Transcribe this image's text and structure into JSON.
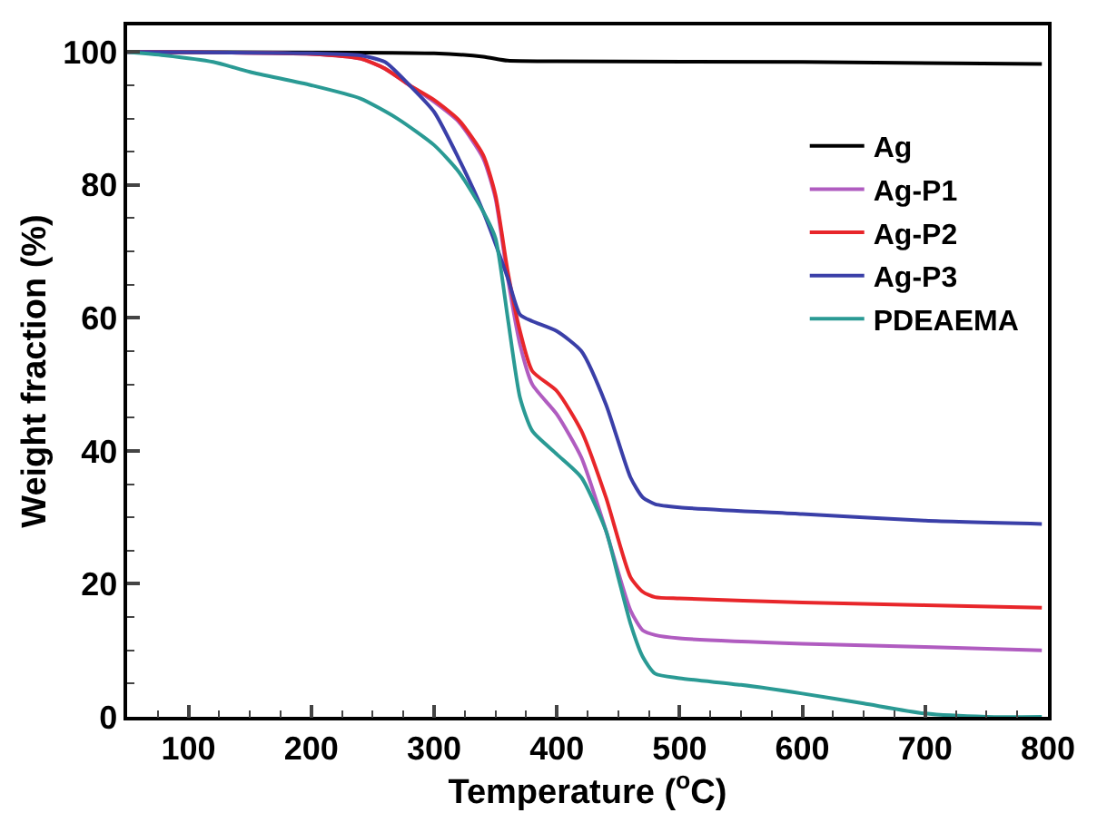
{
  "chart_data": {
    "type": "line",
    "xlabel": "Temperature ($^{o}$C)",
    "ylabel": "Weight fraction (%)",
    "xlim": [
      50,
      800
    ],
    "ylim": [
      0,
      104
    ],
    "xticks": [
      100,
      200,
      300,
      400,
      500,
      600,
      700,
      800
    ],
    "yticks": [
      0,
      20,
      40,
      60,
      80,
      100
    ],
    "legend": "top right",
    "marker": "none",
    "line_style": "solid",
    "series": [
      {
        "name": "Ag",
        "color": "#000000",
        "x": [
          50,
          300,
          340,
          360,
          400,
          600,
          795
        ],
        "values": [
          100,
          99.8,
          99.3,
          98.7,
          98.6,
          98.5,
          98.2
        ]
      },
      {
        "name": "Ag-P1",
        "color": "#b05cc0",
        "x": [
          50,
          200,
          240,
          260,
          280,
          300,
          320,
          340,
          350,
          360,
          370,
          380,
          400,
          420,
          440,
          460,
          470,
          480,
          500,
          600,
          700,
          795
        ],
        "values": [
          100,
          99.7,
          99,
          97.5,
          95,
          92.5,
          89.5,
          84,
          78,
          66,
          56,
          50,
          45.5,
          39,
          28,
          16,
          13,
          12.3,
          11.8,
          11,
          10.5,
          10
        ]
      },
      {
        "name": "Ag-P2",
        "color": "#e8262a",
        "x": [
          50,
          200,
          240,
          260,
          280,
          300,
          320,
          340,
          350,
          360,
          370,
          380,
          400,
          420,
          440,
          460,
          470,
          480,
          500,
          600,
          700,
          795
        ],
        "values": [
          100,
          99.7,
          99,
          97.5,
          95,
          92.8,
          89.8,
          84.5,
          78.5,
          67,
          58,
          52,
          49,
          43,
          33,
          21,
          18.8,
          18,
          17.8,
          17.2,
          16.8,
          16.4
        ]
      },
      {
        "name": "Ag-P3",
        "color": "#3a3fa8",
        "x": [
          50,
          200,
          240,
          260,
          280,
          300,
          320,
          340,
          360,
          370,
          380,
          400,
          420,
          440,
          460,
          470,
          480,
          500,
          600,
          700,
          795
        ],
        "values": [
          100,
          99.8,
          99.5,
          98.5,
          95,
          91,
          84,
          76,
          66,
          60.5,
          59.5,
          58,
          55,
          47,
          36,
          33,
          32,
          31.5,
          30.5,
          29.5,
          29
        ]
      },
      {
        "name": "PDEAEMA",
        "color": "#2a9a94",
        "x": [
          50,
          80,
          120,
          150,
          200,
          240,
          270,
          300,
          320,
          340,
          350,
          360,
          370,
          380,
          400,
          420,
          440,
          450,
          460,
          470,
          480,
          500,
          550,
          600,
          650,
          700,
          750,
          795
        ],
        "values": [
          100,
          99.5,
          98.5,
          97,
          95,
          93,
          90,
          86,
          82,
          76,
          72,
          60,
          48,
          43,
          39.5,
          36,
          28,
          21,
          14,
          9,
          6.5,
          5.8,
          4.8,
          3.5,
          2,
          0.5,
          0,
          0
        ]
      }
    ]
  }
}
